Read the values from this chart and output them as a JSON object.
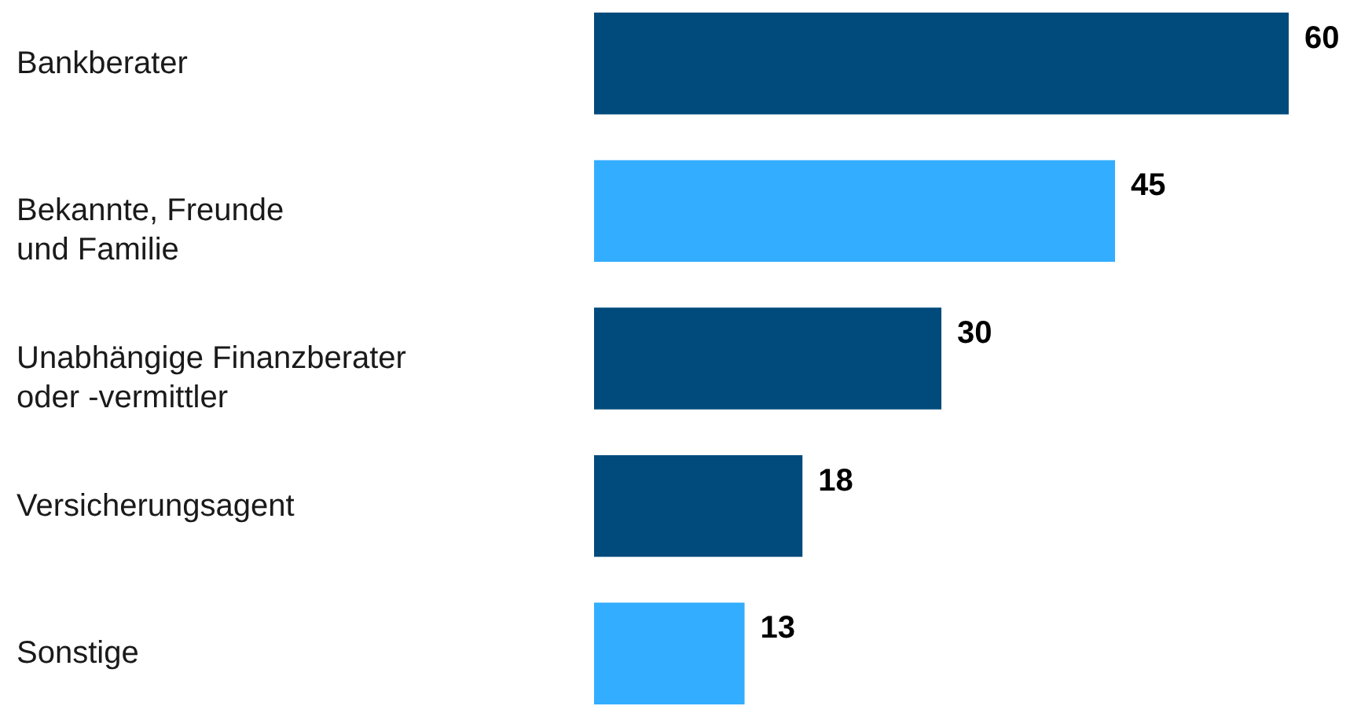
{
  "chart_data": {
    "type": "bar",
    "orientation": "horizontal",
    "data_labels": true,
    "categories": [
      "Bankberater",
      "Bekannte, Freunde\nund Familie",
      "Unabhängige Finanzberater\noder -vermittler",
      "Versicherungsagent",
      "Sonstige"
    ],
    "values": [
      60,
      45,
      30,
      18,
      13
    ],
    "colors": [
      "#004a7c",
      "#33adff",
      "#004a7c",
      "#004a7c",
      "#33adff"
    ]
  }
}
